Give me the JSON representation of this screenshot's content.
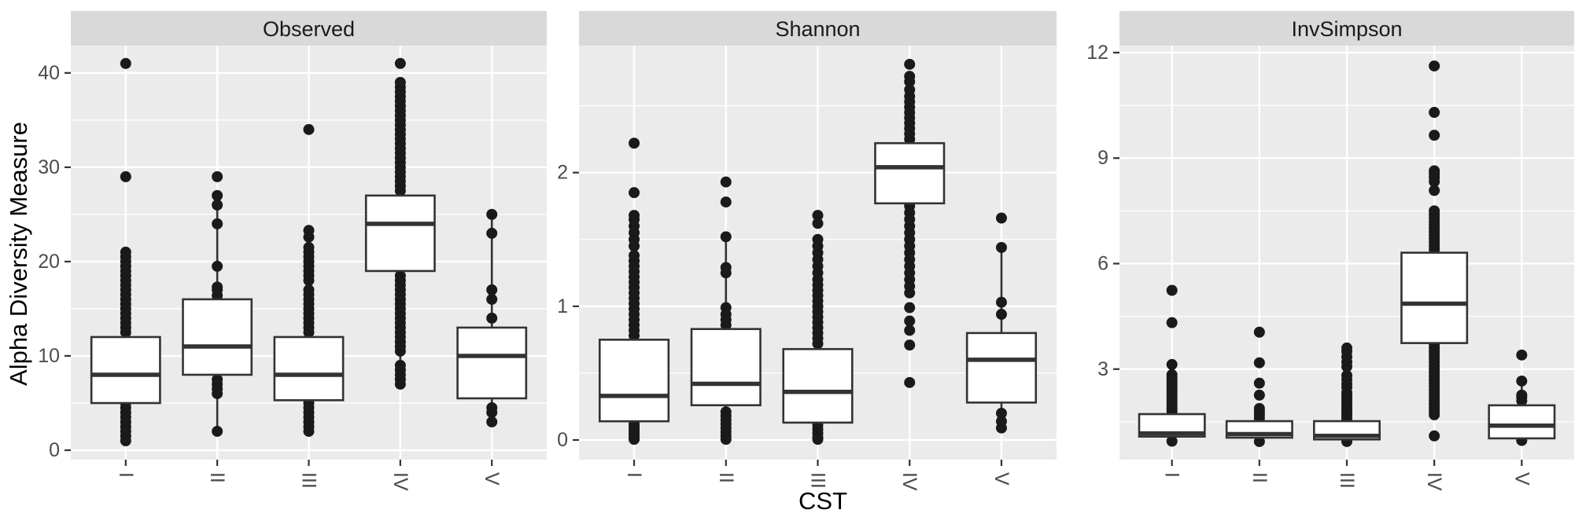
{
  "figure": {
    "y_axis_title": "Alpha Diversity Measure",
    "x_axis_title": "CST",
    "colors": {
      "panel_bg": "#EBEBEB",
      "strip_bg": "#D9D9D9",
      "grid": "#FFFFFF",
      "box_stroke": "#333333",
      "axis_tick": "#333333",
      "point": "#1A1A1A",
      "tick_label": "#4D4D4D",
      "title": "#000000"
    }
  },
  "chart_data": {
    "type": "boxplot",
    "facets": [
      "Observed",
      "Shannon",
      "InvSimpson"
    ],
    "categories": [
      "I",
      "II",
      "III",
      "IV",
      "V"
    ],
    "xlabel": "CST",
    "ylabel": "Alpha Diversity Measure",
    "legend": "none",
    "grid": "on",
    "panels": [
      {
        "label": "Observed",
        "ylim": [
          -1.0,
          42.9
        ],
        "yticks": [
          0,
          10,
          20,
          30,
          40
        ],
        "minor_gridlines": [
          5,
          15,
          25,
          35
        ],
        "boxes": [
          {
            "cst": "I",
            "q1": 5,
            "median": 8,
            "q3": 12,
            "whisker_low": 1,
            "whisker_high": 21,
            "points_upper": [
              12.5,
              13,
              13.5,
              14,
              14.5,
              15,
              15.5,
              16,
              16.5,
              17,
              17.5,
              18,
              18.5,
              19,
              19.5,
              20,
              20.5,
              21,
              29,
              41
            ],
            "points_lower": [
              1,
              1.5,
              2,
              2.5,
              3,
              3.5,
              4,
              4.5,
              5
            ]
          },
          {
            "cst": "II",
            "q1": 8,
            "median": 11,
            "q3": 16,
            "whisker_low": 2,
            "whisker_high": 27,
            "points_upper": [
              16.4,
              17,
              17.3,
              19.5,
              24,
              26,
              27,
              29
            ],
            "points_lower": [
              2,
              6,
              6.5,
              7,
              7.5
            ]
          },
          {
            "cst": "III",
            "q1": 5.3,
            "median": 8,
            "q3": 12,
            "whisker_low": 2,
            "whisker_high": 21.5,
            "points_upper": [
              12.5,
              13,
              13.5,
              14,
              14.5,
              15,
              15.5,
              16,
              16.5,
              17,
              18,
              18.5,
              19,
              19.5,
              20,
              20.5,
              21,
              21.5,
              22.6,
              23.3,
              34
            ],
            "points_lower": [
              2,
              2.5,
              3,
              3.5,
              4,
              4.5,
              5
            ]
          },
          {
            "cst": "IV",
            "q1": 19,
            "median": 24,
            "q3": 27,
            "whisker_low": 7,
            "whisker_high": 39,
            "points_upper": [
              27.5,
              28,
              28.5,
              29,
              29.5,
              30,
              30.5,
              31,
              31.5,
              32,
              32.5,
              33,
              33.5,
              34,
              34.5,
              35,
              35.5,
              36,
              36.5,
              37,
              37.5,
              38,
              38.5,
              39,
              41
            ],
            "points_lower": [
              7,
              7.5,
              8,
              8.5,
              9,
              10.5,
              11,
              11.5,
              12,
              12.5,
              13,
              13.5,
              14,
              14.5,
              15,
              15.5,
              16,
              16.5,
              17,
              17.5,
              18,
              18.5
            ]
          },
          {
            "cst": "V",
            "q1": 5.5,
            "median": 10,
            "q3": 13,
            "whisker_low": 3,
            "whisker_high": 25,
            "points_upper": [
              14,
              16,
              17,
              23,
              25
            ],
            "points_lower": [
              3,
              4,
              4.5
            ]
          }
        ]
      },
      {
        "label": "Shannon",
        "ylim": [
          -0.147,
          2.95
        ],
        "yticks": [
          0,
          1,
          2
        ],
        "minor_gridlines": [
          0.5,
          1.5,
          2.5
        ],
        "boxes": [
          {
            "cst": "I",
            "q1": 0.14,
            "median": 0.33,
            "q3": 0.75,
            "whisker_low": 0.005,
            "whisker_high": 1.65,
            "points_upper": [
              0.78,
              0.82,
              0.86,
              0.9,
              0.94,
              0.98,
              1.02,
              1.06,
              1.1,
              1.14,
              1.18,
              1.22,
              1.26,
              1.3,
              1.34,
              1.38,
              1.45,
              1.5,
              1.55,
              1.6,
              1.65,
              1.68,
              1.85,
              2.22
            ],
            "points_lower": [
              0.005,
              0.02,
              0.04,
              0.06,
              0.08,
              0.1,
              0.12
            ]
          },
          {
            "cst": "II",
            "q1": 0.26,
            "median": 0.42,
            "q3": 0.83,
            "whisker_low": 0.005,
            "whisker_high": 1.52,
            "points_upper": [
              0.86,
              0.9,
              0.94,
              0.99,
              1.25,
              1.29,
              1.52,
              1.78,
              1.93
            ],
            "points_lower": [
              0.005,
              0.03,
              0.06,
              0.09,
              0.12,
              0.15,
              0.18,
              0.21
            ]
          },
          {
            "cst": "III",
            "q1": 0.13,
            "median": 0.36,
            "q3": 0.68,
            "whisker_low": 0.005,
            "whisker_high": 1.5,
            "points_upper": [
              0.72,
              0.76,
              0.8,
              0.84,
              0.88,
              0.92,
              0.96,
              1.0,
              1.04,
              1.08,
              1.12,
              1.16,
              1.2,
              1.25,
              1.3,
              1.35,
              1.4,
              1.45,
              1.5,
              1.62,
              1.68
            ],
            "points_lower": [
              0.005,
              0.02,
              0.05,
              0.08,
              0.11
            ]
          },
          {
            "cst": "IV",
            "q1": 1.77,
            "median": 2.04,
            "q3": 2.22,
            "whisker_low": 1.1,
            "whisker_high": 2.62,
            "points_upper": [
              2.25,
              2.29,
              2.33,
              2.37,
              2.41,
              2.45,
              2.49,
              2.53,
              2.57,
              2.62,
              2.68,
              2.72,
              2.81
            ],
            "points_lower": [
              0.43,
              0.71,
              0.82,
              0.89,
              0.99,
              1.1,
              1.15,
              1.2,
              1.25,
              1.3,
              1.35,
              1.4,
              1.45,
              1.5,
              1.55,
              1.6,
              1.65,
              1.7,
              1.75
            ]
          },
          {
            "cst": "V",
            "q1": 0.28,
            "median": 0.6,
            "q3": 0.8,
            "whisker_low": 0.09,
            "whisker_high": 1.44,
            "points_upper": [
              0.94,
              1.03,
              1.44,
              1.66
            ],
            "points_lower": [
              0.09,
              0.14,
              0.2
            ]
          }
        ]
      },
      {
        "label": "InvSimpson",
        "ylim": [
          0.425,
          12.2
        ],
        "yticks": [
          3,
          6,
          9,
          12
        ],
        "minor_gridlines": [
          1.5,
          4.5,
          7.5,
          10.5
        ],
        "boxes": [
          {
            "cst": "I",
            "q1": 1.08,
            "median": 1.17,
            "q3": 1.72,
            "whisker_low": 0.97,
            "whisker_high": 3.0,
            "points_upper": [
              1.8,
              1.88,
              1.96,
              2.04,
              2.12,
              2.2,
              2.28,
              2.36,
              2.44,
              2.52,
              2.6,
              2.68,
              2.76,
              2.84,
              3.13,
              4.32,
              5.24
            ],
            "points_lower": [
              0.95
            ]
          },
          {
            "cst": "II",
            "q1": 1.05,
            "median": 1.15,
            "q3": 1.52,
            "whisker_low": 0.95,
            "whisker_high": 1.88,
            "points_upper": [
              1.61,
              1.7,
              1.8,
              1.88,
              2.26,
              2.6,
              3.18,
              4.05
            ],
            "points_lower": [
              0.94
            ]
          },
          {
            "cst": "III",
            "q1": 1.0,
            "median": 1.1,
            "q3": 1.52,
            "whisker_low": 0.95,
            "whisker_high": 2.33,
            "points_upper": [
              1.59,
              1.66,
              1.73,
              1.8,
              1.87,
              1.94,
              2.02,
              2.1,
              2.18,
              2.26,
              2.33,
              2.48,
              2.58,
              2.7,
              2.82,
              3.07,
              3.2,
              3.35,
              3.5,
              3.6
            ],
            "points_lower": [
              0.94
            ]
          },
          {
            "cst": "IV",
            "q1": 3.74,
            "median": 4.86,
            "q3": 6.31,
            "whisker_low": 1.7,
            "whisker_high": 7.5,
            "points_upper": [
              6.4,
              6.5,
              6.6,
              6.7,
              6.8,
              6.9,
              7.0,
              7.1,
              7.2,
              7.3,
              7.4,
              7.5,
              8.08,
              8.33,
              8.45,
              8.55,
              8.64,
              9.65,
              10.3,
              11.62
            ],
            "points_lower": [
              1.1,
              1.7,
              1.8,
              1.9,
              2.0,
              2.1,
              2.2,
              2.3,
              2.4,
              2.5,
              2.6,
              2.7,
              2.8,
              2.9,
              3.0,
              3.1,
              3.2,
              3.3,
              3.4,
              3.5,
              3.6,
              3.7
            ]
          },
          {
            "cst": "V",
            "q1": 1.03,
            "median": 1.39,
            "q3": 1.97,
            "whisker_low": 0.97,
            "whisker_high": 2.66,
            "points_upper": [
              2.1,
              2.2,
              2.26,
              2.66,
              3.4
            ],
            "points_lower": [
              0.97
            ]
          }
        ]
      }
    ]
  }
}
